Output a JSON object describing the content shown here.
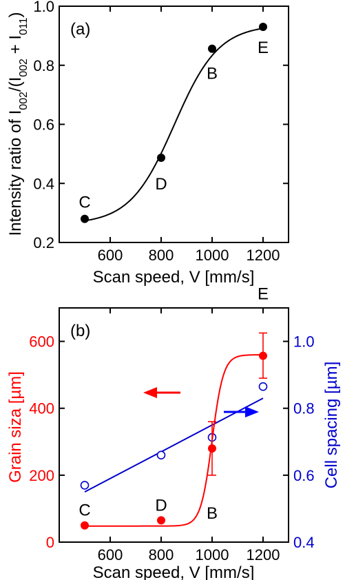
{
  "chart_data": [
    {
      "panel_label": "(a)",
      "type": "scatter",
      "xlabel": "Scan speed, V [mm/s]",
      "ylabel_parts": [
        "Intensity ratio of I",
        "002",
        "/(I",
        "002",
        " + I",
        "011",
        ")"
      ],
      "xlim": [
        400,
        1300
      ],
      "ylim": [
        0.2,
        1.0
      ],
      "x_ticks": [
        600,
        800,
        1000,
        1200
      ],
      "y_ticks": [
        0.2,
        0.4,
        0.6,
        0.8,
        1.0
      ],
      "x_tick_labels": [
        "600",
        "800",
        "1000",
        "1200"
      ],
      "y_tick_labels": [
        "0.2",
        "0.4",
        "0.6",
        "0.8",
        "1.0"
      ],
      "fit": "sigmoid curve",
      "series": [
        {
          "color": "#000000",
          "marker": "filled-circle",
          "points": [
            {
              "label": "C",
              "x": 500,
              "y": 0.28
            },
            {
              "label": "D",
              "x": 800,
              "y": 0.487
            },
            {
              "label": "B",
              "x": 1000,
              "y": 0.856
            },
            {
              "label": "E",
              "x": 1200,
              "y": 0.93
            }
          ]
        }
      ]
    },
    {
      "panel_label": "(b)",
      "type": "scatter",
      "xlabel": "Scan speed, V [mm/s]",
      "ylabel_left": "Grain siza [µm]",
      "ylabel_right": "Cell spacing [µm]",
      "xlim": [
        400,
        1300
      ],
      "ylim_left": [
        0,
        700
      ],
      "ylim_right": [
        0.4,
        1.1
      ],
      "x_ticks": [
        600,
        800,
        1000,
        1200
      ],
      "x_tick_labels": [
        "600",
        "800",
        "1000",
        "1200"
      ],
      "y_left_ticks": [
        0,
        200,
        400,
        600
      ],
      "y_left_tick_labels": [
        "0",
        "200",
        "400",
        "600"
      ],
      "y_right_ticks": [
        0.4,
        0.6,
        0.8,
        1.0
      ],
      "y_right_tick_labels": [
        "0.4",
        "0.6",
        "0.8",
        "1.0"
      ],
      "series": [
        {
          "axis": "left",
          "color": "#ff0000",
          "marker": "filled-circle",
          "fit": "sigmoid curve",
          "points": [
            {
              "label": "C",
              "x": 500,
              "y": 50
            },
            {
              "label": "D",
              "x": 800,
              "y": 65
            },
            {
              "label": "B",
              "x": 1000,
              "y": 280,
              "err_low": 200,
              "err_high": 360
            },
            {
              "label": "E",
              "x": 1200,
              "y": 557,
              "err_low": 490,
              "err_high": 625
            }
          ]
        },
        {
          "axis": "right",
          "color": "#0000cc",
          "marker": "open-circle",
          "fit": "linear",
          "fit_line": [
            {
              "x": 500,
              "y": 0.55
            },
            {
              "x": 1200,
              "y": 0.83
            }
          ],
          "points": [
            {
              "x": 500,
              "y": 0.57
            },
            {
              "x": 800,
              "y": 0.66
            },
            {
              "x": 1000,
              "y": 0.713
            },
            {
              "x": 1200,
              "y": 0.865
            }
          ]
        }
      ]
    }
  ]
}
